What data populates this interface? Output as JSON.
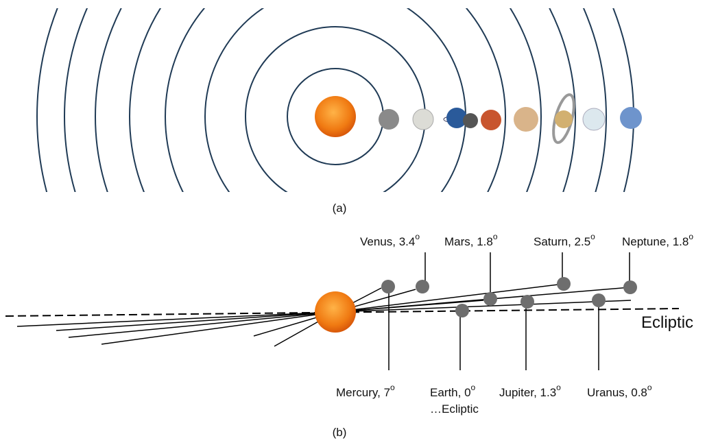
{
  "panel_a": {
    "caption": "(a)"
  },
  "panel_b": {
    "caption": "(b)",
    "ecliptic_label": "Ecliptic",
    "degree_mark": "o",
    "labels": [
      {
        "text": "Venus, 3.4"
      },
      {
        "text": "Mars, 1.8"
      },
      {
        "text": "Saturn, 2.5"
      },
      {
        "text": "Neptune, 1.8"
      },
      {
        "text": "Mercury, 7"
      },
      {
        "text": "Earth, 0",
        "note": "…Ecliptic"
      },
      {
        "text": "Jupiter, 1.3"
      },
      {
        "text": "Uranus, 0.8"
      }
    ]
  }
}
